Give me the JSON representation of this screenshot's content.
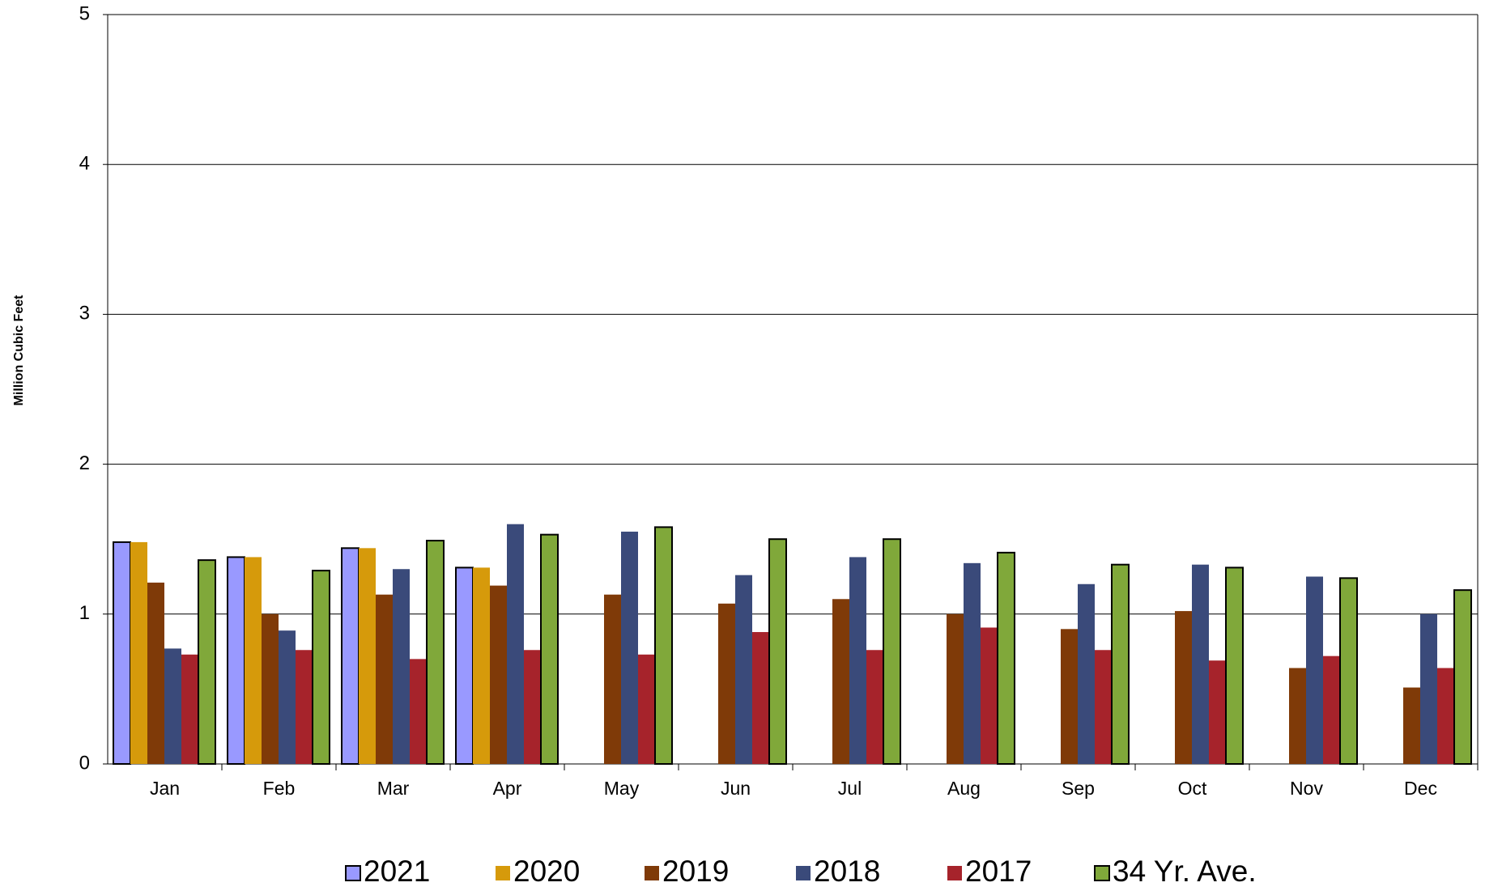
{
  "chart_data": {
    "type": "bar",
    "y_label": "Million Cubic Feet",
    "categories": [
      "Jan",
      "Feb",
      "Mar",
      "Apr",
      "May",
      "Jun",
      "Jul",
      "Aug",
      "Sep",
      "Oct",
      "Nov",
      "Dec"
    ],
    "series": [
      {
        "name": "2021",
        "color": "#9999ff",
        "edgecolor": "#000000",
        "values": [
          1.48,
          1.38,
          1.44,
          1.31,
          null,
          null,
          null,
          null,
          null,
          null,
          null,
          null
        ]
      },
      {
        "name": "2020",
        "color": "#d69a0b",
        "values": [
          1.48,
          1.38,
          1.44,
          1.31,
          null,
          null,
          null,
          null,
          null,
          null,
          null,
          null
        ]
      },
      {
        "name": "2019",
        "color": "#7f3a08",
        "values": [
          1.21,
          1.0,
          1.13,
          1.19,
          1.13,
          1.07,
          1.1,
          1.0,
          0.9,
          1.02,
          0.64,
          0.51
        ]
      },
      {
        "name": "2018",
        "color": "#3a4a7a",
        "values": [
          0.77,
          0.89,
          1.3,
          1.6,
          1.55,
          1.26,
          1.38,
          1.34,
          1.2,
          1.33,
          1.25,
          1.0
        ]
      },
      {
        "name": "2017",
        "color": "#a6232b",
        "values": [
          0.73,
          0.76,
          0.7,
          0.76,
          0.73,
          0.88,
          0.76,
          0.91,
          0.76,
          0.69,
          0.72,
          0.64
        ]
      },
      {
        "name": "34 Yr. Ave.",
        "color": "#80a83a",
        "edgecolor": "#000000",
        "values": [
          1.36,
          1.29,
          1.49,
          1.53,
          1.58,
          1.5,
          1.5,
          1.41,
          1.33,
          1.31,
          1.24,
          1.16
        ]
      }
    ],
    "ylim": [
      0,
      5
    ],
    "yticks": [
      0,
      1,
      2,
      3,
      4,
      5
    ],
    "grid": true
  }
}
